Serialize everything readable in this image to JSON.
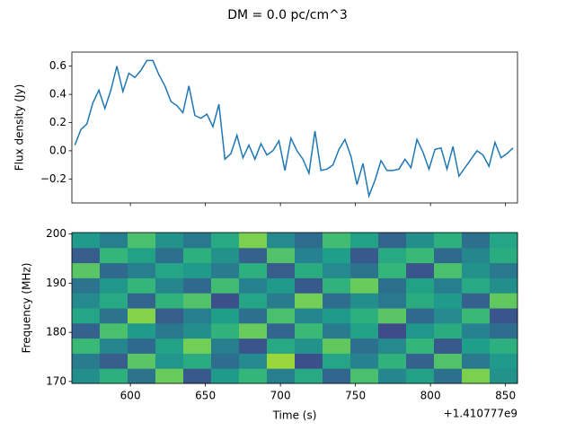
{
  "title": "DM = 0.0 pc/cm^3",
  "chart_data": [
    {
      "type": "line",
      "ylabel": "Flux density (Jy)",
      "color": "#1f77b4",
      "x": [
        563,
        567,
        571,
        575,
        579,
        583,
        587,
        591,
        595,
        599,
        603,
        607,
        611,
        615,
        619,
        623,
        627,
        631,
        635,
        639,
        643,
        647,
        651,
        655,
        659,
        663,
        667,
        671,
        675,
        679,
        683,
        687,
        691,
        695,
        699,
        703,
        707,
        711,
        715,
        719,
        723,
        727,
        731,
        735,
        739,
        743,
        747,
        751,
        755,
        759,
        763,
        767,
        771,
        775,
        779,
        783,
        787,
        791,
        795,
        799,
        803,
        807,
        811,
        815,
        819,
        823,
        827,
        831,
        835,
        839,
        843,
        847,
        851,
        855
      ],
      "values": [
        0.04,
        0.15,
        0.19,
        0.34,
        0.43,
        0.3,
        0.43,
        0.6,
        0.42,
        0.55,
        0.52,
        0.57,
        0.64,
        0.64,
        0.54,
        0.46,
        0.35,
        0.32,
        0.27,
        0.46,
        0.25,
        0.23,
        0.26,
        0.17,
        0.33,
        -0.06,
        -0.02,
        0.11,
        -0.05,
        0.04,
        -0.06,
        0.05,
        -0.03,
        0.0,
        0.07,
        -0.14,
        0.09,
        0.0,
        -0.06,
        -0.16,
        0.14,
        -0.14,
        -0.13,
        -0.1,
        0.01,
        0.08,
        -0.04,
        -0.24,
        -0.09,
        -0.32,
        -0.21,
        -0.07,
        -0.14,
        -0.14,
        -0.13,
        -0.06,
        -0.12,
        0.08,
        -0.01,
        -0.13,
        0.01,
        0.02,
        -0.13,
        0.03,
        -0.18,
        -0.12,
        -0.06,
        0.0,
        -0.03,
        -0.11,
        0.06,
        -0.05,
        -0.02,
        0.02
      ],
      "xlim": [
        561,
        858
      ],
      "ylim": [
        -0.37,
        0.7
      ],
      "yticks": [
        {
          "value": -0.2,
          "label": "−0.2"
        },
        {
          "value": 0,
          "label": "0.0"
        },
        0.2,
        0.4,
        0.6
      ]
    },
    {
      "type": "heatmap",
      "xlabel": "Time (s)",
      "ylabel": "Frequency (MHz)",
      "x_offset_label": "+1.410777e9",
      "colormap": "viridis",
      "clim": [
        0.2,
        0.85
      ],
      "xlim": [
        561,
        858
      ],
      "ylim": [
        169.6,
        200.3
      ],
      "xticks": [
        600,
        650,
        700,
        750,
        800,
        850
      ],
      "yticks": [
        170,
        180,
        190,
        200
      ],
      "z": [
        [
          0.52,
          0.61,
          0.45,
          0.7,
          0.38,
          0.55,
          0.63,
          0.48,
          0.59,
          0.41,
          0.66,
          0.5,
          0.57,
          0.44,
          0.72,
          0.53
        ],
        [
          0.47,
          0.39,
          0.68,
          0.54,
          0.6,
          0.43,
          0.51,
          0.75,
          0.36,
          0.58,
          0.49,
          0.62,
          0.4,
          0.67,
          0.46,
          0.55
        ],
        [
          0.64,
          0.5,
          0.42,
          0.57,
          0.71,
          0.48,
          0.37,
          0.59,
          0.53,
          0.69,
          0.44,
          0.51,
          0.63,
          0.38,
          0.56,
          0.61
        ],
        [
          0.4,
          0.66,
          0.55,
          0.46,
          0.52,
          0.62,
          0.7,
          0.41,
          0.64,
          0.47,
          0.57,
          0.35,
          0.54,
          0.6,
          0.49,
          0.43
        ],
        [
          0.58,
          0.45,
          0.73,
          0.39,
          0.48,
          0.56,
          0.44,
          0.66,
          0.5,
          0.55,
          0.61,
          0.68,
          0.42,
          0.51,
          0.64,
          0.37
        ],
        [
          0.51,
          0.59,
          0.41,
          0.62,
          0.67,
          0.36,
          0.58,
          0.47,
          0.71,
          0.43,
          0.52,
          0.46,
          0.6,
          0.55,
          0.4,
          0.69
        ],
        [
          0.45,
          0.54,
          0.63,
          0.5,
          0.42,
          0.65,
          0.49,
          0.55,
          0.38,
          0.62,
          0.7,
          0.44,
          0.57,
          0.48,
          0.59,
          0.52
        ],
        [
          0.68,
          0.42,
          0.48,
          0.58,
          0.55,
          0.47,
          0.61,
          0.39,
          0.6,
          0.51,
          0.45,
          0.63,
          0.37,
          0.66,
          0.53,
          0.46
        ],
        [
          0.39,
          0.63,
          0.57,
          0.44,
          0.61,
          0.53,
          0.4,
          0.67,
          0.49,
          0.56,
          0.38,
          0.59,
          0.64,
          0.42,
          0.5,
          0.6
        ],
        [
          0.55,
          0.48,
          0.66,
          0.53,
          0.46,
          0.59,
          0.72,
          0.51,
          0.43,
          0.65,
          0.57,
          0.41,
          0.52,
          0.61,
          0.44,
          0.58
        ]
      ]
    }
  ]
}
